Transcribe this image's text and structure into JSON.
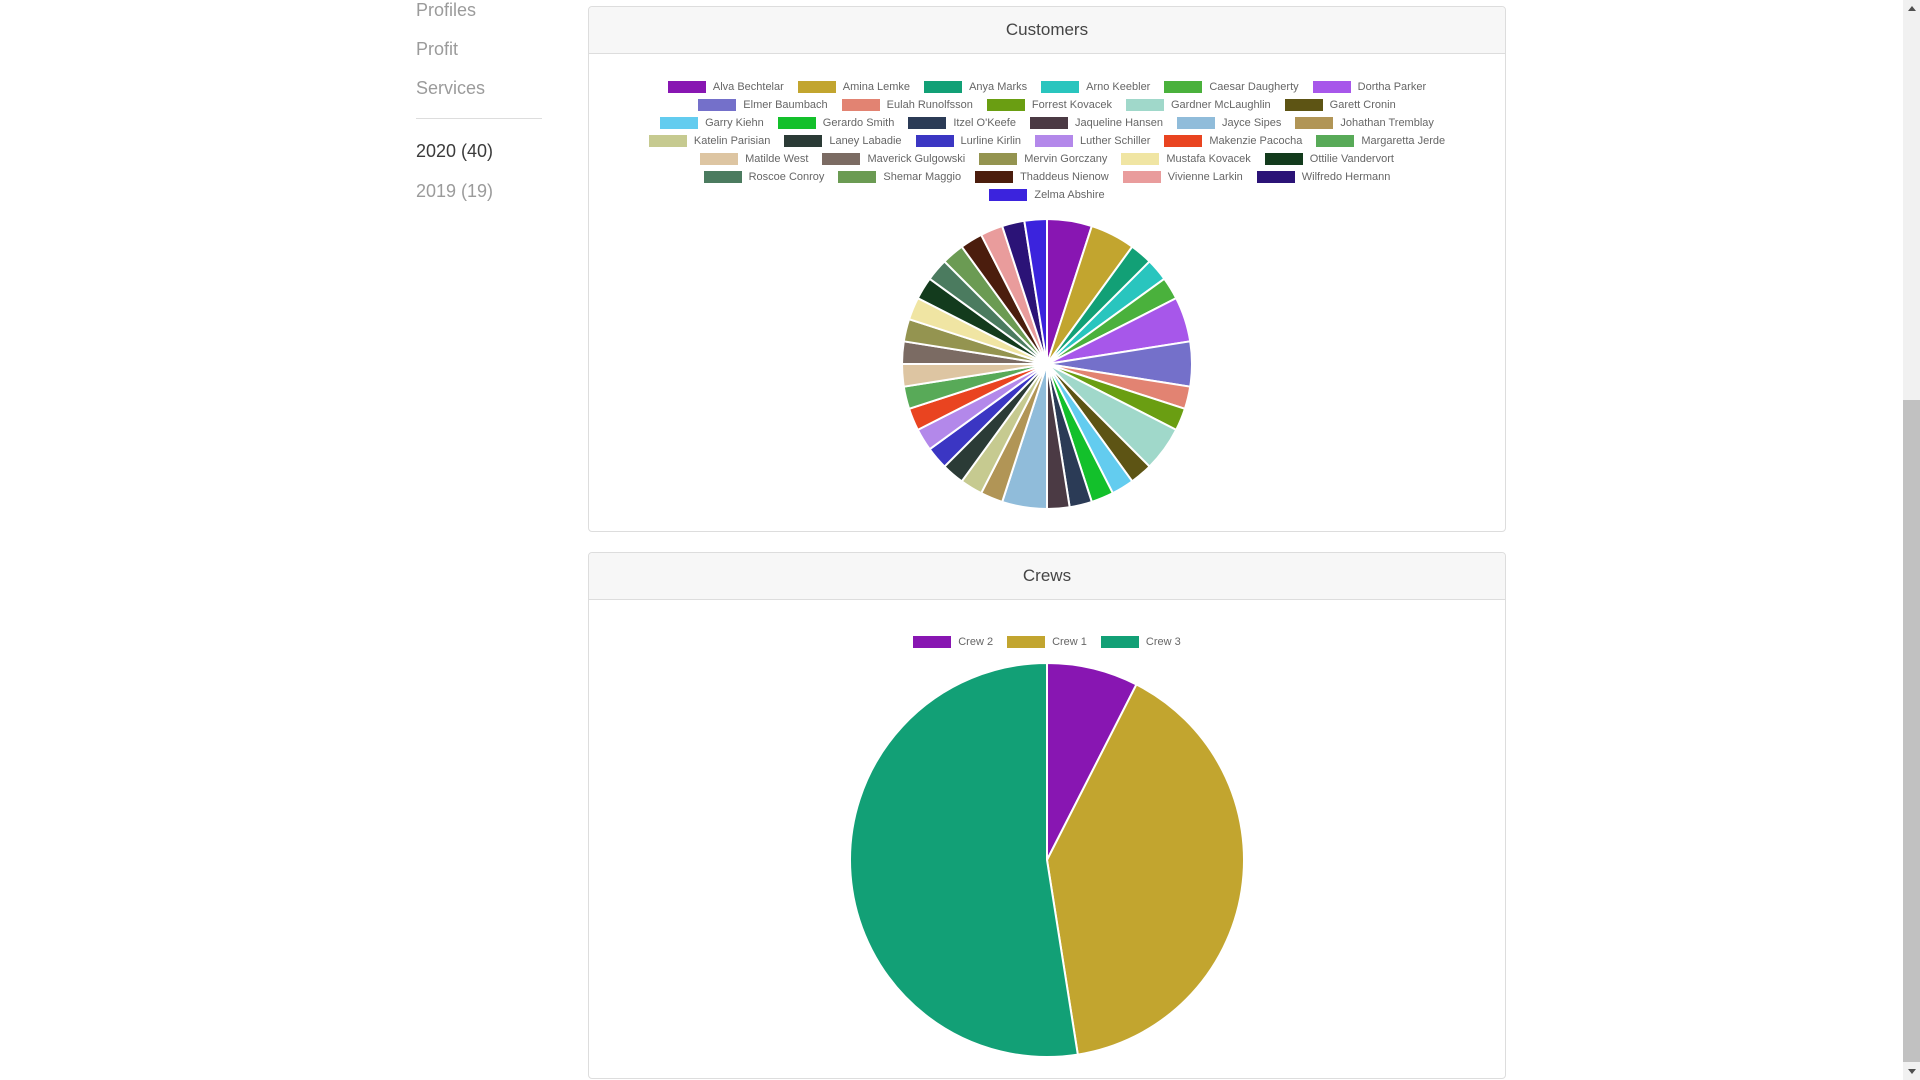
{
  "sidebar": {
    "items": [
      {
        "label": "Profiles"
      },
      {
        "label": "Profit"
      },
      {
        "label": "Services"
      }
    ],
    "years": [
      {
        "label": "2020 (40)",
        "selected": true
      },
      {
        "label": "2019 (19)",
        "selected": false
      }
    ]
  },
  "chart_data": [
    {
      "type": "pie",
      "title": "Customers",
      "legend_position": "top",
      "total": 40,
      "series": [
        {
          "label": "Alva Bechtelar",
          "value": 2,
          "color": "#8816B2"
        },
        {
          "label": "Amina Lemke",
          "value": 2,
          "color": "#C2A52F"
        },
        {
          "label": "Anya Marks",
          "value": 1,
          "color": "#12A076"
        },
        {
          "label": "Arno Keebler",
          "value": 1,
          "color": "#29C5BE"
        },
        {
          "label": "Caesar Daugherty",
          "value": 1,
          "color": "#4AB13C"
        },
        {
          "label": "Dortha Parker",
          "value": 2,
          "color": "#A757EA"
        },
        {
          "label": "Elmer Baumbach",
          "value": 2,
          "color": "#7470CA"
        },
        {
          "label": "Eulah Runolfsson",
          "value": 1,
          "color": "#E28372"
        },
        {
          "label": "Forrest Kovacek",
          "value": 1,
          "color": "#6A9E12"
        },
        {
          "label": "Gardner McLaughlin",
          "value": 2,
          "color": "#A0D8CA"
        },
        {
          "label": "Garett Cronin",
          "value": 1,
          "color": "#5D5414"
        },
        {
          "label": "Garry Kiehn",
          "value": 1,
          "color": "#63CCEF"
        },
        {
          "label": "Gerardo Smith",
          "value": 1,
          "color": "#13C02B"
        },
        {
          "label": "Itzel O'Keefe",
          "value": 1,
          "color": "#2B3B56"
        },
        {
          "label": "Jaqueline Hansen",
          "value": 1,
          "color": "#4B3A44"
        },
        {
          "label": "Jayce Sipes",
          "value": 2,
          "color": "#90BCDA"
        },
        {
          "label": "Johathan Tremblay",
          "value": 1,
          "color": "#B19556"
        },
        {
          "label": "Katelin Parisian",
          "value": 1,
          "color": "#C6CA90"
        },
        {
          "label": "Laney Labadie",
          "value": 1,
          "color": "#2B3B36"
        },
        {
          "label": "Lurline Kirlin",
          "value": 1,
          "color": "#3B36C3"
        },
        {
          "label": "Luther Schiller",
          "value": 1,
          "color": "#B388EA"
        },
        {
          "label": "Makenzie Pacocha",
          "value": 1,
          "color": "#E94420"
        },
        {
          "label": "Margaretta Jerde",
          "value": 1,
          "color": "#58AA58"
        },
        {
          "label": "Matilde West",
          "value": 1,
          "color": "#DDC5A2"
        },
        {
          "label": "Maverick Gulgowski",
          "value": 1,
          "color": "#7B6B63"
        },
        {
          "label": "Mervin Gorczany",
          "value": 1,
          "color": "#949450"
        },
        {
          "label": "Mustafa Kovacek",
          "value": 1,
          "color": "#F0E5A3"
        },
        {
          "label": "Ottilie Vandervort",
          "value": 1,
          "color": "#133B1D"
        },
        {
          "label": "Roscoe Conroy",
          "value": 1,
          "color": "#4B7B5F"
        },
        {
          "label": "Shemar Maggio",
          "value": 1,
          "color": "#6B9B53"
        },
        {
          "label": "Thaddeus Nienow",
          "value": 1,
          "color": "#4B1D0D"
        },
        {
          "label": "Vivienne Larkin",
          "value": 1,
          "color": "#E99C9C"
        },
        {
          "label": "Wilfredo Hermann",
          "value": 1,
          "color": "#2B1377"
        },
        {
          "label": "Zelma Abshire",
          "value": 1,
          "color": "#3B23DD"
        }
      ]
    },
    {
      "type": "pie",
      "title": "Crews",
      "legend_position": "top",
      "total": 40,
      "series": [
        {
          "label": "Crew 2",
          "value": 3,
          "color": "#8816B2"
        },
        {
          "label": "Crew 1",
          "value": 16,
          "color": "#C2A52F"
        },
        {
          "label": "Crew 3",
          "value": 21,
          "color": "#12A076"
        }
      ]
    }
  ]
}
